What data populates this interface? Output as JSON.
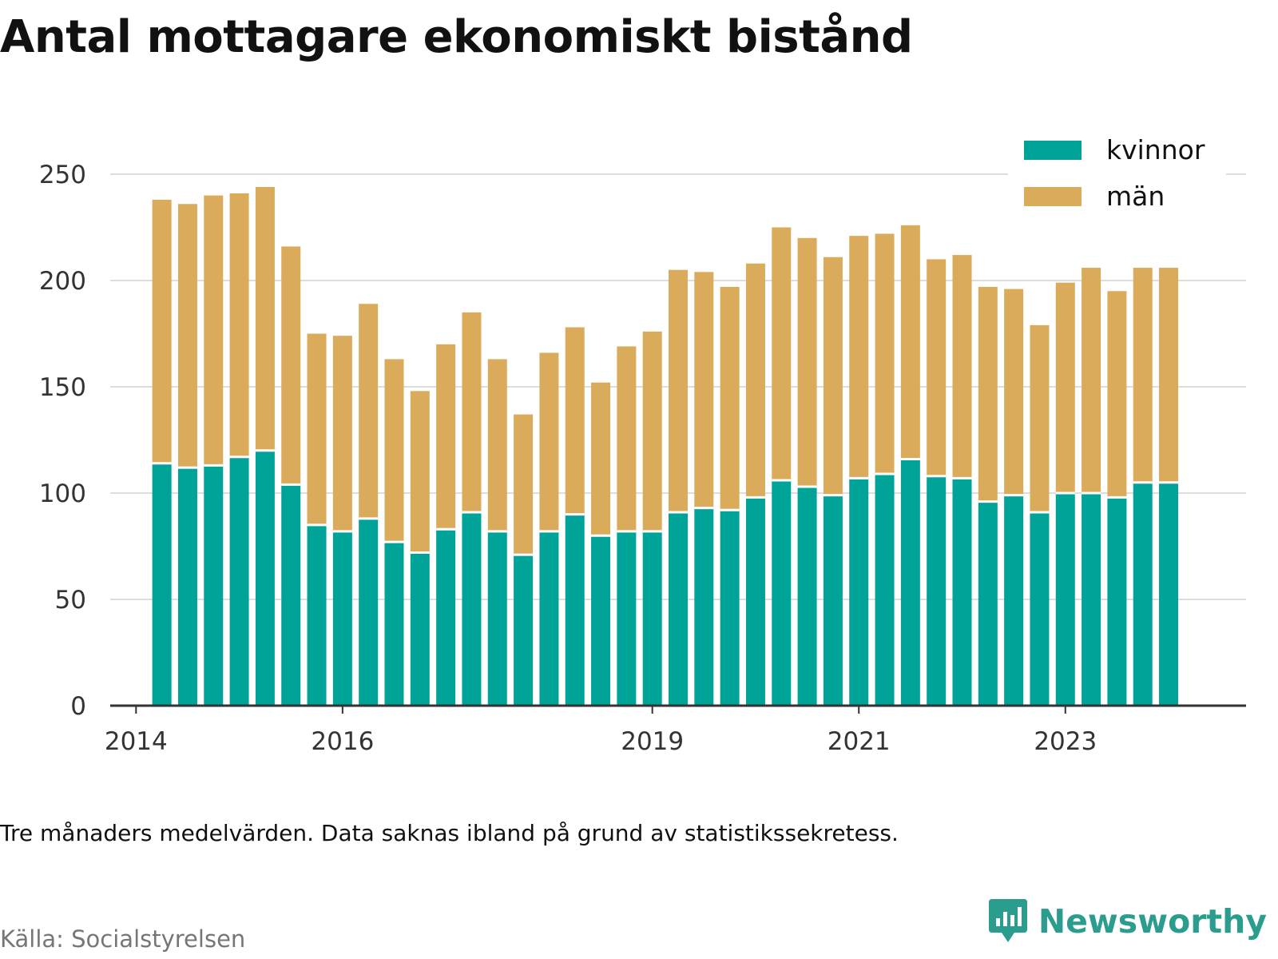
{
  "title": "Antal mottagare ekonomiskt bistånd",
  "note": "Tre månaders medelvärden. Data saknas ibland på grund av statistikssekretess.",
  "source": "Källa: Socialstyrelsen",
  "brand": {
    "name": "Newsworthy",
    "icon": "newsworthy-logo-icon",
    "color": "#2a9d8f"
  },
  "chart_data": {
    "type": "bar",
    "stacked": true,
    "title": "Antal mottagare ekonomiskt bistånd",
    "xlabel": "",
    "ylabel": "",
    "ylim": [
      0,
      250
    ],
    "yticks": [
      0,
      50,
      100,
      150,
      200,
      250
    ],
    "grid": true,
    "legend_position": "top-right",
    "x_axis": {
      "min": 2013.75,
      "max": 2024.75
    },
    "xtick_labels": [
      {
        "label": "2014",
        "year": 2014.0
      },
      {
        "label": "2016",
        "year": 2016.0
      },
      {
        "label": "2019",
        "year": 2019.0
      },
      {
        "label": "2021",
        "year": 2021.0
      },
      {
        "label": "2023",
        "year": 2023.0
      }
    ],
    "x": [
      2014.25,
      2014.5,
      2014.75,
      2015.0,
      2015.25,
      2015.5,
      2015.75,
      2016.0,
      2016.25,
      2016.5,
      2016.75,
      2017.0,
      2017.25,
      2017.5,
      2017.75,
      2018.0,
      2018.25,
      2018.5,
      2018.75,
      2019.0,
      2019.25,
      2019.5,
      2019.75,
      2020.0,
      2020.25,
      2020.5,
      2020.75,
      2021.0,
      2021.25,
      2021.5,
      2021.75,
      2022.0,
      2022.25,
      2022.5,
      2022.75,
      2023.0,
      2023.25,
      2023.5,
      2023.75,
      2024.0
    ],
    "series": [
      {
        "name": "kvinnor",
        "color": "#00a398",
        "values": [
          114,
          112,
          113,
          117,
          120,
          104,
          85,
          82,
          88,
          77,
          72,
          83,
          91,
          82,
          71,
          82,
          90,
          80,
          82,
          82,
          91,
          93,
          92,
          98,
          106,
          103,
          99,
          107,
          109,
          116,
          108,
          107,
          96,
          99,
          91,
          100,
          100,
          98,
          105,
          105
        ]
      },
      {
        "name": "män",
        "color": "#dbab5c",
        "values": [
          124,
          124,
          127,
          124,
          124,
          112,
          90,
          92,
          101,
          86,
          76,
          87,
          94,
          81,
          66,
          84,
          88,
          72,
          87,
          94,
          114,
          111,
          105,
          110,
          119,
          117,
          112,
          114,
          113,
          110,
          102,
          105,
          101,
          97,
          88,
          99,
          106,
          97,
          101,
          101
        ]
      }
    ]
  }
}
